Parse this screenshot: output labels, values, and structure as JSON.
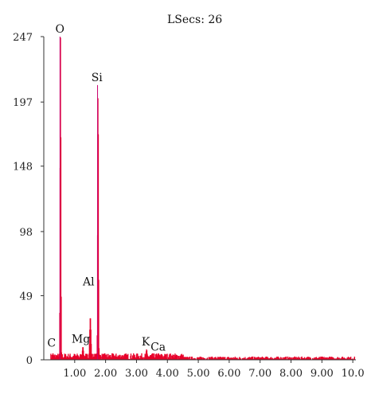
{
  "chart_data": {
    "type": "bar",
    "header_text": "LSecs: 26",
    "xlim": [
      0,
      10.1
    ],
    "ylim": [
      0,
      247
    ],
    "x_ticks": [
      "1.00",
      "2.00",
      "3.00",
      "4.00",
      "5.00",
      "6.00",
      "7.00",
      "8.00",
      "9.00",
      "10.0"
    ],
    "x_tick_values": [
      1,
      2,
      3,
      4,
      5,
      6,
      7,
      8,
      9,
      10
    ],
    "y_ticks": [
      "0",
      "49",
      "98",
      "148",
      "197",
      "247"
    ],
    "y_tick_values": [
      0,
      49,
      98,
      148,
      197,
      247
    ],
    "peaks": [
      {
        "label": "C",
        "x": 0.28,
        "y": 5,
        "label_x": 0.25,
        "label_y": 10
      },
      {
        "label": "O",
        "x": 0.525,
        "y": 247,
        "label_x": 0.52,
        "label_y": 250
      },
      {
        "label": "Mg",
        "x": 1.25,
        "y": 10,
        "label_x": 1.2,
        "label_y": 13
      },
      {
        "label": "Al",
        "x": 1.49,
        "y": 33,
        "label_x": 1.45,
        "label_y": 57
      },
      {
        "label": "Si",
        "x": 1.74,
        "y": 210,
        "label_x": 1.72,
        "label_y": 213
      },
      {
        "label": "K",
        "x": 3.31,
        "y": 8,
        "label_x": 3.3,
        "label_y": 11
      },
      {
        "label": "Ca",
        "x": 3.69,
        "y": 5,
        "label_x": 3.7,
        "label_y": 7
      }
    ],
    "colors": {
      "spectrum": "#e8002a",
      "peak_line": "#c8006e",
      "axis": "#333333"
    }
  }
}
